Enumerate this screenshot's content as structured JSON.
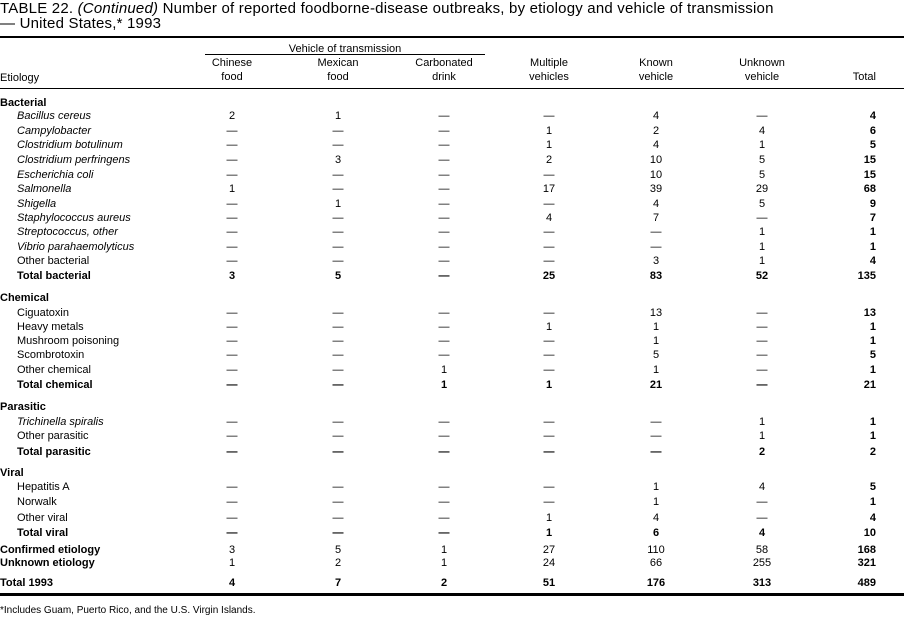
{
  "title": {
    "prefix": "TABLE 22.",
    "continued": "(Continued)",
    "text": "Number of reported foodborne-disease outbreaks, by etiology and vehicle of transmission",
    "line2": "— United States,*  1993"
  },
  "header": {
    "group_label": "Vehicle of transmission",
    "etiology": "Etiology",
    "columns": [
      [
        "Chinese",
        "food"
      ],
      [
        "Mexican",
        "food"
      ],
      [
        "Carbonated",
        "drink"
      ],
      [
        "Multiple",
        "vehicles"
      ],
      [
        "Known",
        "vehicle"
      ],
      [
        "Unknown",
        "vehicle"
      ],
      [
        "",
        "Total"
      ]
    ]
  },
  "rows": [
    {
      "label": "Bacterial",
      "type": "category"
    },
    {
      "label": "Bacillus cereus",
      "type": "italic",
      "values": [
        "2",
        "1",
        "—",
        "—",
        "4",
        "—",
        "4"
      ]
    },
    {
      "label": "Campylobacter",
      "type": "italic",
      "values": [
        "—",
        "—",
        "—",
        "1",
        "2",
        "4",
        "6"
      ]
    },
    {
      "label": "Clostridium botulinum",
      "type": "italic",
      "values": [
        "—",
        "—",
        "—",
        "1",
        "4",
        "1",
        "5"
      ]
    },
    {
      "label": "Clostridium perfringens",
      "type": "italic",
      "values": [
        "—",
        "3",
        "—",
        "2",
        "10",
        "5",
        "15"
      ]
    },
    {
      "label": "Escherichia coli",
      "type": "italic",
      "values": [
        "—",
        "—",
        "—",
        "—",
        "10",
        "5",
        "15"
      ]
    },
    {
      "label": "Salmonella",
      "type": "italic",
      "values": [
        "1",
        "—",
        "—",
        "17",
        "39",
        "29",
        "68"
      ]
    },
    {
      "label": "Shigella",
      "type": "italic",
      "values": [
        "—",
        "1",
        "—",
        "—",
        "4",
        "5",
        "9"
      ]
    },
    {
      "label": "Staphylococcus aureus",
      "type": "italic",
      "values": [
        "—",
        "—",
        "—",
        "4",
        "7",
        "—",
        "7"
      ]
    },
    {
      "label": "Streptococcus, other",
      "type": "italic",
      "values": [
        "—",
        "—",
        "—",
        "—",
        "—",
        "1",
        "1"
      ]
    },
    {
      "label": "Vibrio parahaemolyticus",
      "type": "italic",
      "values": [
        "—",
        "—",
        "—",
        "—",
        "—",
        "1",
        "1"
      ]
    },
    {
      "label": "Other bacterial",
      "type": "item",
      "values": [
        "—",
        "—",
        "—",
        "—",
        "3",
        "1",
        "4"
      ]
    },
    {
      "label": "Total bacterial",
      "type": "total",
      "values": [
        "3",
        "5",
        "—",
        "25",
        "83",
        "52",
        "135"
      ]
    },
    {
      "label": "Chemical",
      "type": "category"
    },
    {
      "label": "Ciguatoxin",
      "type": "item",
      "values": [
        "—",
        "—",
        "—",
        "—",
        "13",
        "—",
        "13"
      ]
    },
    {
      "label": "Heavy metals",
      "type": "item",
      "values": [
        "—",
        "—",
        "—",
        "1",
        "1",
        "—",
        "1"
      ]
    },
    {
      "label": "Mushroom poisoning",
      "type": "item",
      "values": [
        "—",
        "—",
        "—",
        "—",
        "1",
        "—",
        "1"
      ]
    },
    {
      "label": "Scombrotoxin",
      "type": "item",
      "values": [
        "—",
        "—",
        "—",
        "—",
        "5",
        "—",
        "5"
      ]
    },
    {
      "label": "Other chemical",
      "type": "item",
      "values": [
        "—",
        "—",
        "1",
        "—",
        "1",
        "—",
        "1"
      ]
    },
    {
      "label": "Total chemical",
      "type": "total",
      "values": [
        "—",
        "—",
        "1",
        "1",
        "21",
        "—",
        "21"
      ]
    },
    {
      "label": "Parasitic",
      "type": "category"
    },
    {
      "label": "Trichinella spiralis",
      "type": "italic",
      "values": [
        "—",
        "—",
        "—",
        "—",
        "—",
        "1",
        "1"
      ]
    },
    {
      "label": "Other parasitic",
      "type": "item",
      "values": [
        "—",
        "—",
        "—",
        "—",
        "—",
        "1",
        "1"
      ]
    },
    {
      "label": "Total parasitic",
      "type": "total",
      "values": [
        "—",
        "—",
        "—",
        "—",
        "—",
        "2",
        "2"
      ]
    },
    {
      "label": "Viral",
      "type": "category"
    },
    {
      "label": "Hepatitis A",
      "type": "item",
      "values": [
        "—",
        "—",
        "—",
        "—",
        "1",
        "4",
        "5"
      ]
    },
    {
      "label": "Norwalk",
      "type": "item",
      "values": [
        "—",
        "—",
        "—",
        "—",
        "1",
        "—",
        "1"
      ]
    },
    {
      "label": "Other viral",
      "type": "item",
      "values": [
        "—",
        "—",
        "—",
        "1",
        "4",
        "—",
        "4"
      ]
    },
    {
      "label": "Total viral",
      "type": "total",
      "values": [
        "—",
        "—",
        "—",
        "1",
        "6",
        "4",
        "10"
      ]
    },
    {
      "label": "Confirmed etiology",
      "type": "summary",
      "values": [
        "3",
        "5",
        "1",
        "27",
        "110",
        "58",
        "168"
      ]
    },
    {
      "label": "Unknown etiology",
      "type": "summary",
      "values": [
        "1",
        "2",
        "1",
        "24",
        "66",
        "255",
        "321"
      ]
    },
    {
      "label": "Total 1993",
      "type": "grand",
      "values": [
        "4",
        "7",
        "2",
        "51",
        "176",
        "313",
        "489"
      ]
    }
  ],
  "footnote": "*Includes Guam, Puerto Rico, and the U.S. Virgin Islands."
}
